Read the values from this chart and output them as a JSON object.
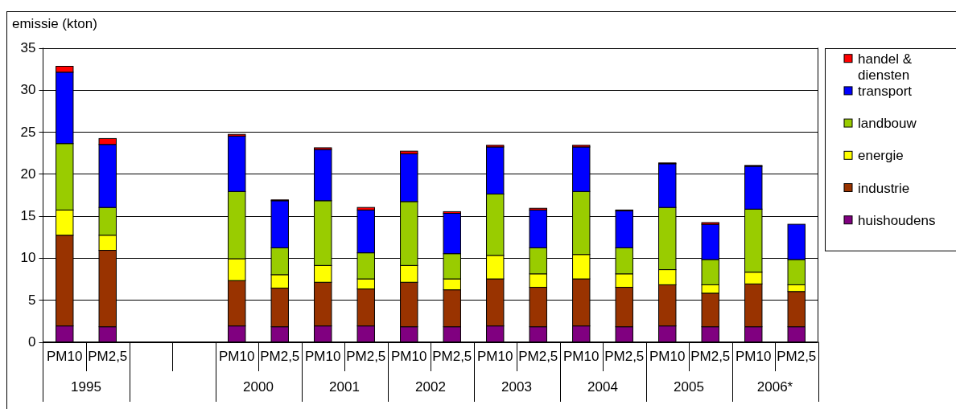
{
  "chart_data": {
    "type": "bar",
    "stacked": true,
    "ylabel": "emissie (kton)",
    "categories": [
      "PM10",
      "PM2,5",
      null,
      null,
      "PM10",
      "PM2,5",
      "PM10",
      "PM2,5",
      "PM10",
      "PM2,5",
      "PM10",
      "PM2,5",
      "PM10",
      "PM2,5",
      "PM10",
      "PM2,5",
      "PM10",
      "PM2,5"
    ],
    "annotations": [
      "1995",
      "2000",
      "2001",
      "2002",
      "2003",
      "2004",
      "2005",
      "2006*"
    ],
    "series": [
      {
        "name": "huishoudens",
        "color": "#800080",
        "values": [
          1.9,
          1.8,
          null,
          null,
          1.9,
          1.8,
          1.9,
          1.9,
          1.8,
          1.8,
          1.9,
          1.8,
          1.9,
          1.8,
          1.9,
          1.8,
          1.8,
          1.8
        ]
      },
      {
        "name": "industrie",
        "color": "#993300",
        "values": [
          10.8,
          9.1,
          null,
          null,
          5.4,
          4.6,
          5.2,
          4.4,
          5.3,
          4.4,
          5.6,
          4.7,
          5.6,
          4.7,
          4.9,
          4.0,
          5.1,
          4.2
        ]
      },
      {
        "name": "energie",
        "color": "#ffff00",
        "values": [
          3.0,
          1.8,
          null,
          null,
          2.6,
          1.6,
          2.0,
          1.2,
          2.0,
          1.3,
          2.8,
          1.6,
          2.9,
          1.6,
          1.8,
          1.0,
          1.4,
          0.8
        ]
      },
      {
        "name": "landbouw",
        "color": "#99cc00",
        "values": [
          7.9,
          3.3,
          null,
          null,
          8.0,
          3.2,
          7.7,
          3.1,
          7.6,
          3.0,
          7.3,
          3.1,
          7.5,
          3.1,
          7.4,
          3.0,
          7.5,
          3.0
        ]
      },
      {
        "name": "transport",
        "color": "#0000ff",
        "values": [
          8.5,
          7.5,
          null,
          null,
          6.6,
          5.6,
          6.1,
          5.1,
          5.7,
          4.8,
          5.6,
          4.5,
          5.3,
          4.4,
          5.2,
          4.2,
          5.1,
          4.2
        ]
      },
      {
        "name": "handel & diensten",
        "color": "#ff0000",
        "values": [
          0.7,
          0.7,
          null,
          null,
          0.2,
          0.1,
          0.2,
          0.3,
          0.3,
          0.2,
          0.2,
          0.2,
          0.2,
          0.1,
          0.1,
          0.2,
          0.1,
          null
        ]
      }
    ],
    "ylim": [
      0,
      35
    ],
    "yticks": [
      0,
      5,
      10,
      15,
      20,
      25,
      30,
      35
    ],
    "grid": "y",
    "legend": "right"
  }
}
